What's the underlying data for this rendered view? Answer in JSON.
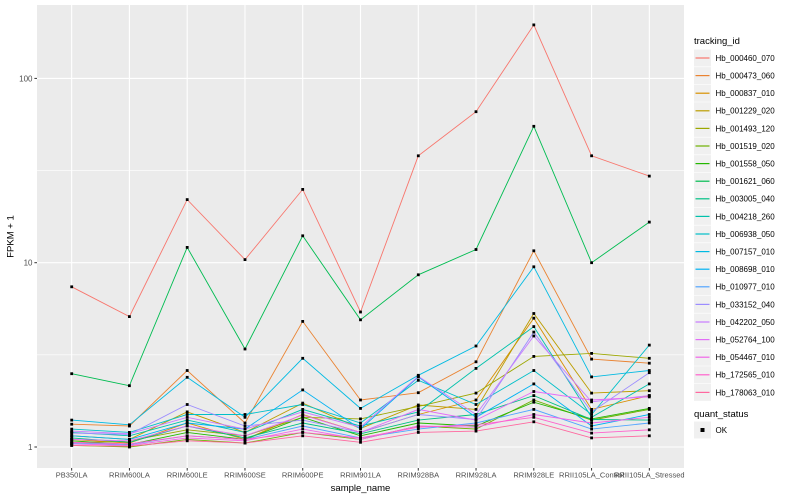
{
  "chart_data": {
    "type": "line",
    "title": "",
    "xlabel": "sample_name",
    "ylabel": "FPKM + 1",
    "y_scale": "log10",
    "y_ticks": [
      1,
      10,
      100
    ],
    "y_tick_labels": [
      "1",
      "10",
      "100"
    ],
    "y_minor_ticks": [
      3.162,
      31.62
    ],
    "ylim": [
      0.77,
      248
    ],
    "grid": "on",
    "legend_position": "right",
    "marker": {
      "shape": "square",
      "color": "#000000"
    },
    "categories": [
      "PB350LA",
      "RRIM600LA",
      "RRIM600LE",
      "RRIM600SE",
      "RRIM600PE",
      "RRIM901LA",
      "RRIM928BA",
      "RRIM928LA",
      "RRIM928LE",
      "RRII105LA_Control",
      "RRII105LA_Stressed"
    ],
    "series": [
      {
        "name": "Hb_000460_070",
        "color": "#F8766D",
        "values": [
          7.4,
          5.1,
          22,
          10.4,
          25,
          5.4,
          38,
          66,
          195,
          38,
          29.5
        ]
      },
      {
        "name": "Hb_000473_060",
        "color": "#EA8331",
        "values": [
          1.33,
          1.3,
          2.6,
          1.35,
          4.8,
          1.8,
          1.97,
          2.9,
          11.6,
          3.0,
          2.85
        ]
      },
      {
        "name": "Hb_000837_010",
        "color": "#D89000",
        "values": [
          1.1,
          1.05,
          1.35,
          1.1,
          1.5,
          1.2,
          1.5,
          1.8,
          5.0,
          1.6,
          1.9
        ]
      },
      {
        "name": "Hb_001229_020",
        "color": "#BC9D00",
        "values": [
          1.15,
          1.1,
          1.55,
          1.2,
          1.73,
          1.26,
          1.69,
          1.6,
          5.3,
          1.96,
          2.02
        ]
      },
      {
        "name": "Hb_001493_120",
        "color": "#9CA700",
        "values": [
          1.05,
          1.08,
          1.24,
          1.15,
          1.45,
          1.42,
          1.66,
          1.96,
          3.1,
          3.22,
          3.03
        ]
      },
      {
        "name": "Hb_001519_020",
        "color": "#6FB000",
        "values": [
          1.02,
          1.0,
          1.1,
          1.05,
          1.2,
          1.1,
          1.3,
          1.25,
          1.8,
          1.4,
          1.6
        ]
      },
      {
        "name": "Hb_001558_050",
        "color": "#24B700",
        "values": [
          1.08,
          1.03,
          1.2,
          1.1,
          1.45,
          1.15,
          1.35,
          1.3,
          1.75,
          1.42,
          1.62
        ]
      },
      {
        "name": "Hb_001621_060",
        "color": "#00BC51",
        "values": [
          2.5,
          2.15,
          12.1,
          3.4,
          14.0,
          4.9,
          8.6,
          11.8,
          55.0,
          10.0,
          16.6
        ]
      },
      {
        "name": "Hb_003005_040",
        "color": "#00C084",
        "values": [
          1.12,
          1.06,
          1.3,
          1.12,
          1.35,
          1.18,
          1.4,
          1.5,
          1.9,
          1.41,
          1.4
        ]
      },
      {
        "name": "Hb_004218_260",
        "color": "#00C1AB",
        "values": [
          1.2,
          1.15,
          1.4,
          1.2,
          1.6,
          1.3,
          1.55,
          2.67,
          4.5,
          1.45,
          2.2
        ]
      },
      {
        "name": "Hb_006938_050",
        "color": "#00BFC9",
        "values": [
          1.25,
          1.2,
          1.5,
          1.5,
          1.7,
          1.35,
          2.3,
          1.7,
          2.6,
          1.5,
          3.57
        ]
      },
      {
        "name": "Hb_007157_010",
        "color": "#00BAE2",
        "values": [
          1.4,
          1.32,
          2.39,
          1.45,
          3.03,
          1.62,
          2.45,
          3.53,
          9.5,
          2.4,
          2.6
        ]
      },
      {
        "name": "Hb_008698_010",
        "color": "#00B2F3",
        "values": [
          1.15,
          1.1,
          1.35,
          1.25,
          2.04,
          1.25,
          2.4,
          1.45,
          2.2,
          1.3,
          1.5
        ]
      },
      {
        "name": "Hb_010977_010",
        "color": "#52A5FF",
        "values": [
          1.05,
          1.03,
          1.15,
          1.1,
          1.3,
          1.12,
          1.25,
          1.35,
          1.6,
          1.25,
          1.35
        ]
      },
      {
        "name": "Hb_033152_040",
        "color": "#9C8DFF",
        "values": [
          1.19,
          1.17,
          1.7,
          1.3,
          1.4,
          1.2,
          1.5,
          1.41,
          4.2,
          1.55,
          2.53
        ]
      },
      {
        "name": "Hb_042202_050",
        "color": "#C77CFF",
        "values": [
          1.22,
          1.18,
          1.45,
          1.25,
          1.55,
          1.28,
          2.42,
          1.5,
          4.0,
          1.76,
          1.9
        ]
      },
      {
        "name": "Hb_052764_100",
        "color": "#E26EF7",
        "values": [
          1.1,
          1.08,
          1.3,
          1.15,
          1.49,
          1.2,
          1.6,
          1.4,
          2.0,
          1.8,
          1.87
        ]
      },
      {
        "name": "Hb_054467_010",
        "color": "#F166E8",
        "values": [
          1.04,
          1.02,
          1.12,
          1.08,
          1.25,
          1.1,
          1.3,
          1.28,
          1.5,
          1.35,
          1.45
        ]
      },
      {
        "name": "Hb_172565_010",
        "color": "#FF61CC",
        "values": [
          1.06,
          1.04,
          1.15,
          1.1,
          1.2,
          1.12,
          1.28,
          1.32,
          1.45,
          1.19,
          1.24
        ]
      },
      {
        "name": "Hb_178063_010",
        "color": "#FF689F",
        "values": [
          1.02,
          1.01,
          1.08,
          1.05,
          1.15,
          1.06,
          1.2,
          1.22,
          1.37,
          1.12,
          1.15
        ]
      }
    ]
  },
  "legend_tracking": {
    "title": "tracking_id"
  },
  "legend_quant": {
    "title": "quant_status",
    "items": [
      {
        "label": "OK",
        "marker_color": "#000000"
      }
    ]
  },
  "colors": {
    "panel_bg": "#EBEBEB",
    "grid": "#FFFFFF",
    "tick_text": "#4D4D4D",
    "tick_mark": "#333333",
    "legend_key_bg": "#F0F0F0"
  }
}
